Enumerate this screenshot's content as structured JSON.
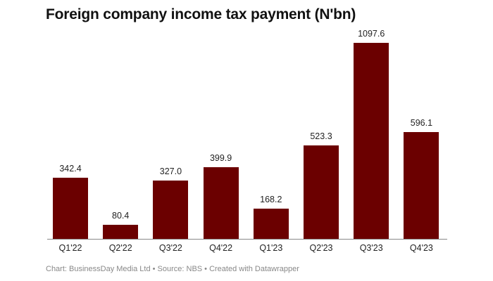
{
  "chart": {
    "title": "Foreign company income tax payment (N'bn)",
    "footer": "Chart: BusinessDay Media Ltd • Source: NBS • Created with Datawrapper",
    "bar_color": "#6b0000"
  },
  "chart_data": {
    "type": "bar",
    "title": "Foreign company income tax payment (N'bn)",
    "xlabel": "",
    "ylabel": "",
    "categories": [
      "Q1'22",
      "Q2'22",
      "Q3'22",
      "Q4'22",
      "Q1'23",
      "Q2'23",
      "Q3'23",
      "Q4'23"
    ],
    "values": [
      342.4,
      80.4,
      327.0,
      399.9,
      168.2,
      523.3,
      1097.6,
      596.1
    ],
    "value_labels": [
      "342.4",
      "80.4",
      "327.0",
      "399.9",
      "168.2",
      "523.3",
      "1097.6",
      "596.1"
    ],
    "ylim": [
      0,
      1097.6
    ],
    "grid": false,
    "legend": null,
    "source": "Chart: BusinessDay Media Ltd • Source: NBS • Created with Datawrapper"
  }
}
